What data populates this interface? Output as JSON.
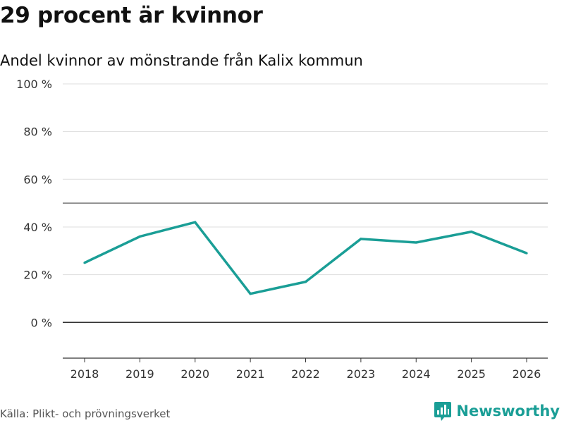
{
  "header": {
    "title": "29 procent är kvinnor",
    "subtitle": "Andel kvinnor av mönstrande från Kalix kommun"
  },
  "footer": {
    "source": "Källa: Plikt- och prövningsverket",
    "brand": "Newsworthy"
  },
  "colors": {
    "line": "#1a9e96",
    "grid": "#dddddd",
    "axis": "#333333",
    "brand": "#1a9e96"
  },
  "chart_data": {
    "type": "line",
    "title": "29 procent är kvinnor",
    "subtitle": "Andel kvinnor av mönstrande från Kalix kommun",
    "xlabel": "",
    "ylabel": "",
    "categories": [
      "2018",
      "2019",
      "2020",
      "2021",
      "2022",
      "2023",
      "2024",
      "2025",
      "2026"
    ],
    "series": [
      {
        "name": "Andel kvinnor",
        "values": [
          25,
          36,
          42,
          12,
          17,
          35,
          33.5,
          38,
          29
        ]
      }
    ],
    "ylim": [
      -15,
      100
    ],
    "yticks": [
      0,
      20,
      40,
      60,
      80,
      100
    ],
    "ytick_labels": [
      "0 %",
      "20 %",
      "40 %",
      "60 %",
      "80 %",
      "100 %"
    ],
    "reference_line": 50,
    "grid": true
  }
}
